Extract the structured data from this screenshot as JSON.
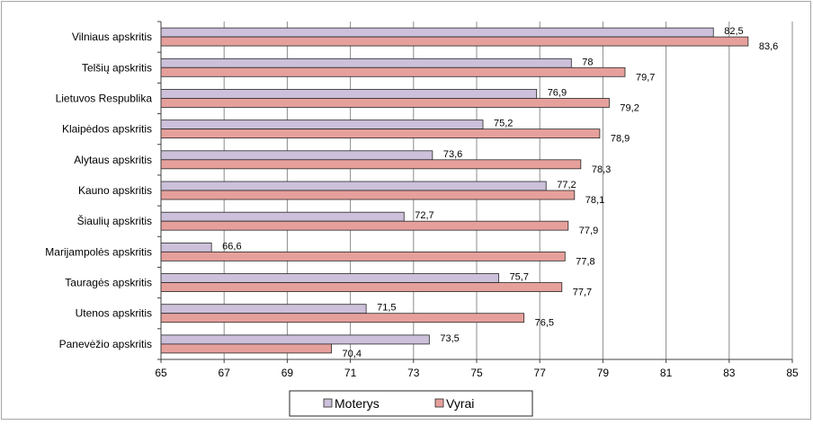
{
  "chart_data": {
    "type": "bar",
    "orientation": "horizontal",
    "categories": [
      "Vilniaus apskritis",
      "Telšių apskritis",
      "Lietuvos Respublika",
      "Klaipėdos apskritis",
      "Alytaus apskritis",
      "Kauno apskritis",
      "Šiaulių apskritis",
      "Marijampolės apskritis",
      "Tauragės apskritis",
      "Utenos apskritis",
      "Panevėžio apskritis"
    ],
    "series": [
      {
        "name": "Moterys",
        "color": "#ccc0da",
        "values": [
          82.5,
          78,
          76.9,
          75.2,
          73.6,
          77.2,
          72.7,
          66.6,
          75.7,
          71.5,
          73.5
        ],
        "labels": [
          "82,5",
          "78",
          "76,9",
          "75,2",
          "73,6",
          "77,2",
          "72,7",
          "66,6",
          "75,7",
          "71,5",
          "73,5"
        ]
      },
      {
        "name": "Vyrai",
        "color": "#e6a09c",
        "values": [
          83.6,
          79.7,
          79.2,
          78.9,
          78.3,
          78.1,
          77.9,
          77.8,
          77.7,
          76.5,
          70.4
        ],
        "labels": [
          "83,6",
          "79,7",
          "79,2",
          "78,9",
          "78,3",
          "78,1",
          "77,9",
          "77,8",
          "77,7",
          "76,5",
          "70,4"
        ]
      }
    ],
    "xlim": [
      65,
      85
    ],
    "xticks": [
      65,
      67,
      69,
      71,
      73,
      75,
      77,
      79,
      81,
      83,
      85
    ],
    "xtick_labels": [
      "65",
      "67",
      "69",
      "71",
      "73",
      "75",
      "77",
      "79",
      "81",
      "83",
      "85"
    ],
    "grid": true,
    "legend_position": "bottom"
  }
}
